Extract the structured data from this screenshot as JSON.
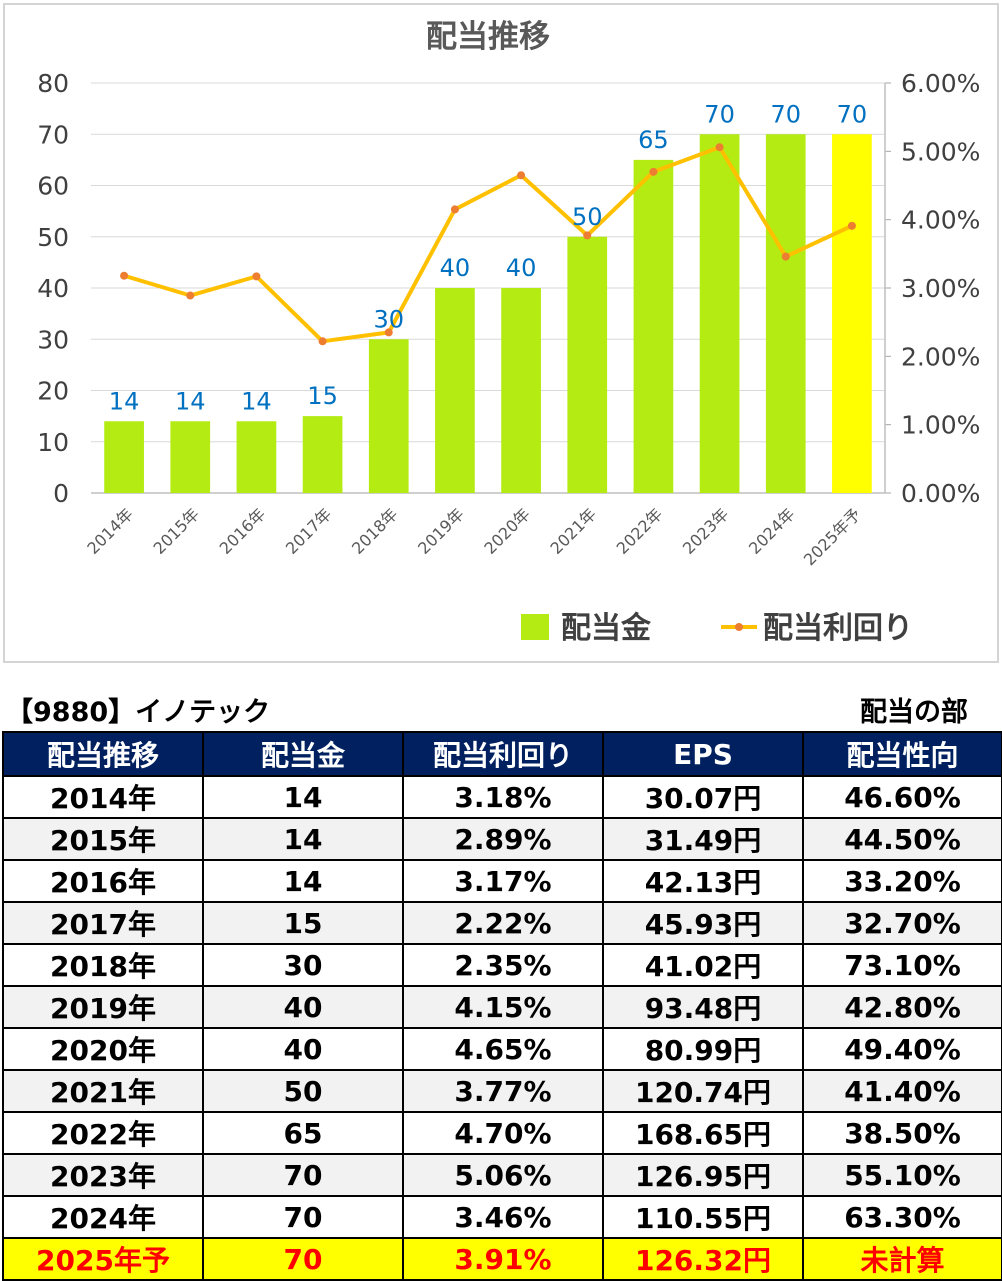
{
  "chart_data": {
    "type": "bar+line",
    "title": "配当推移",
    "categories": [
      "2014年",
      "2015年",
      "2016年",
      "2017年",
      "2018年",
      "2019年",
      "2020年",
      "2021年",
      "2022年",
      "2023年",
      "2024年",
      "2025年予"
    ],
    "series": [
      {
        "name": "配当金",
        "type": "bar",
        "axis": "left",
        "values": [
          14,
          14,
          14,
          15,
          30,
          40,
          40,
          50,
          65,
          70,
          70,
          70
        ],
        "color": "#b3eb12",
        "forecast_color": "#ffff00"
      },
      {
        "name": "配当利回り",
        "type": "line",
        "axis": "right",
        "values": [
          3.18,
          2.89,
          3.17,
          2.22,
          2.35,
          4.15,
          4.65,
          3.77,
          4.7,
          5.06,
          3.46,
          3.91
        ],
        "color": "#ffc000",
        "marker_color": "#ed7d31"
      }
    ],
    "y_left": {
      "min": 0,
      "max": 80,
      "ticks": [
        "0",
        "10",
        "20",
        "30",
        "40",
        "50",
        "60",
        "70",
        "80"
      ]
    },
    "y_right": {
      "min": 0,
      "max": 6,
      "ticks": [
        "0.00%",
        "1.00%",
        "2.00%",
        "3.00%",
        "4.00%",
        "5.00%",
        "6.00%"
      ]
    },
    "bar_labels": [
      "14",
      "14",
      "14",
      "15",
      "30",
      "40",
      "40",
      "50",
      "65",
      "70",
      "70",
      "70"
    ],
    "label_color": "#0070c0",
    "grid": true,
    "legend_position": "bottom-right"
  },
  "info": {
    "company": "【9880】イノテック",
    "section": "配当の部"
  },
  "table": {
    "headers": [
      "配当推移",
      "配当金",
      "配当利回り",
      "EPS",
      "配当性向"
    ],
    "rows": [
      [
        "2014年",
        "14",
        "3.18%",
        "30.07円",
        "46.60%"
      ],
      [
        "2015年",
        "14",
        "2.89%",
        "31.49円",
        "44.50%"
      ],
      [
        "2016年",
        "14",
        "3.17%",
        "42.13円",
        "33.20%"
      ],
      [
        "2017年",
        "15",
        "2.22%",
        "45.93円",
        "32.70%"
      ],
      [
        "2018年",
        "30",
        "2.35%",
        "41.02円",
        "73.10%"
      ],
      [
        "2019年",
        "40",
        "4.15%",
        "93.48円",
        "42.80%"
      ],
      [
        "2020年",
        "40",
        "4.65%",
        "80.99円",
        "49.40%"
      ],
      [
        "2021年",
        "50",
        "3.77%",
        "120.74円",
        "41.40%"
      ],
      [
        "2022年",
        "65",
        "4.70%",
        "168.65円",
        "38.50%"
      ],
      [
        "2023年",
        "70",
        "5.06%",
        "126.95円",
        "55.10%"
      ],
      [
        "2024年",
        "70",
        "3.46%",
        "110.55円",
        "63.30%"
      ],
      [
        "2025年予",
        "70",
        "3.91%",
        "126.32円",
        "未計算"
      ]
    ]
  }
}
